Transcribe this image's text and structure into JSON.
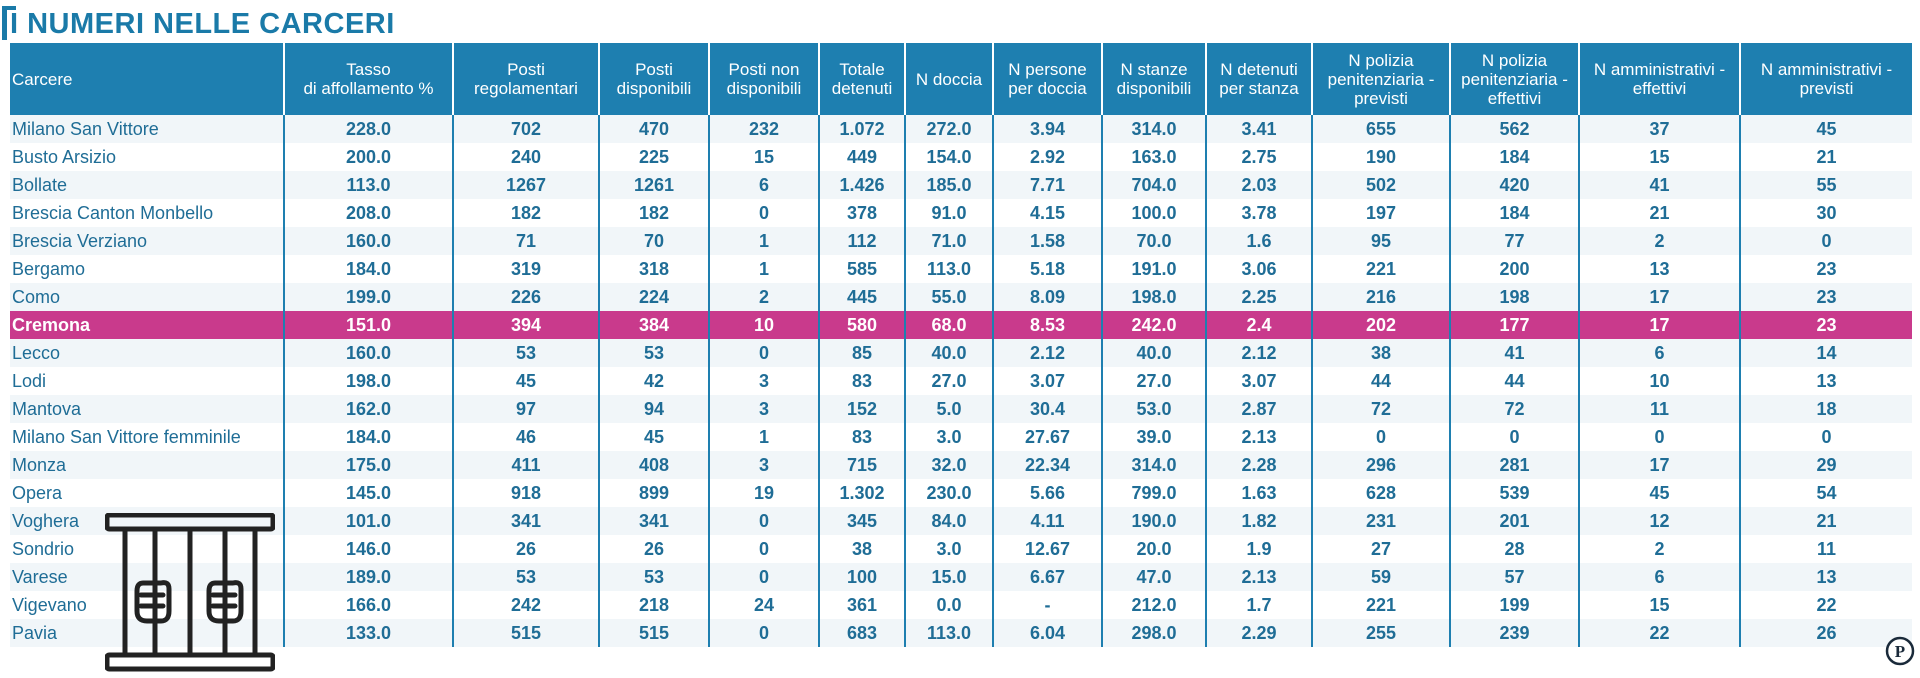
{
  "title": "I NUMERI NELLE CARCERI",
  "headers": [
    "Carcere",
    "Tasso di affollamento %",
    "Posti regolamentari",
    "Posti disponibili",
    "Posti non disponibili",
    "Totale detenuti",
    "N doccia",
    "N persone per doccia",
    "N stanze disponibili",
    "N detenuti per stanza",
    "N polizia penitenziaria - previsti",
    "N polizia penitenziaria - effettivi",
    "N amministrativi - effettivi",
    "N amministrativi - previsti"
  ],
  "rows": [
    [
      "Milano San Vittore",
      "228.0",
      "702",
      "470",
      "232",
      "1.072",
      "272.0",
      "3.94",
      "314.0",
      "3.41",
      "655",
      "562",
      "37",
      "45"
    ],
    [
      "Busto Arsizio",
      "200.0",
      "240",
      "225",
      "15",
      "449",
      "154.0",
      "2.92",
      "163.0",
      "2.75",
      "190",
      "184",
      "15",
      "21"
    ],
    [
      "Bollate",
      "113.0",
      "1267",
      "1261",
      "6",
      "1.426",
      "185.0",
      "7.71",
      "704.0",
      "2.03",
      "502",
      "420",
      "41",
      "55"
    ],
    [
      "Brescia Canton Monbello",
      "208.0",
      "182",
      "182",
      "0",
      "378",
      "91.0",
      "4.15",
      "100.0",
      "3.78",
      "197",
      "184",
      "21",
      "30"
    ],
    [
      "Brescia Verziano",
      "160.0",
      "71",
      "70",
      "1",
      "112",
      "71.0",
      "1.58",
      "70.0",
      "1.6",
      "95",
      "77",
      "2",
      "0"
    ],
    [
      "Bergamo",
      "184.0",
      "319",
      "318",
      "1",
      "585",
      "113.0",
      "5.18",
      "191.0",
      "3.06",
      "221",
      "200",
      "13",
      "23"
    ],
    [
      "Como",
      "199.0",
      "226",
      "224",
      "2",
      "445",
      "55.0",
      "8.09",
      "198.0",
      "2.25",
      "216",
      "198",
      "17",
      "23"
    ],
    [
      "Cremona",
      "151.0",
      "394",
      "384",
      "10",
      "580",
      "68.0",
      "8.53",
      "242.0",
      "2.4",
      "202",
      "177",
      "17",
      "23"
    ],
    [
      "Lecco",
      "160.0",
      "53",
      "53",
      "0",
      "85",
      "40.0",
      "2.12",
      "40.0",
      "2.12",
      "38",
      "41",
      "6",
      "14"
    ],
    [
      "Lodi",
      "198.0",
      "45",
      "42",
      "3",
      "83",
      "27.0",
      "3.07",
      "27.0",
      "3.07",
      "44",
      "44",
      "10",
      "13"
    ],
    [
      "Mantova",
      "162.0",
      "97",
      "94",
      "3",
      "152",
      "5.0",
      "30.4",
      "53.0",
      "2.87",
      "72",
      "72",
      "11",
      "18"
    ],
    [
      "Milano San Vittore femminile",
      "184.0",
      "46",
      "45",
      "1",
      "83",
      "3.0",
      "27.67",
      "39.0",
      "2.13",
      "0",
      "0",
      "0",
      "0"
    ],
    [
      "Monza",
      "175.0",
      "411",
      "408",
      "3",
      "715",
      "32.0",
      "22.34",
      "314.0",
      "2.28",
      "296",
      "281",
      "17",
      "29"
    ],
    [
      "Opera",
      "145.0",
      "918",
      "899",
      "19",
      "1.302",
      "230.0",
      "5.66",
      "799.0",
      "1.63",
      "628",
      "539",
      "45",
      "54"
    ],
    [
      "Voghera",
      "101.0",
      "341",
      "341",
      "0",
      "345",
      "84.0",
      "4.11",
      "190.0",
      "1.82",
      "231",
      "201",
      "12",
      "21"
    ],
    [
      "Sondrio",
      "146.0",
      "26",
      "26",
      "0",
      "38",
      "3.0",
      "12.67",
      "20.0",
      "1.9",
      "27",
      "28",
      "2",
      "11"
    ],
    [
      "Varese",
      "189.0",
      "53",
      "53",
      "0",
      "100",
      "15.0",
      "6.67",
      "47.0",
      "2.13",
      "59",
      "57",
      "6",
      "13"
    ],
    [
      "Vigevano",
      "166.0",
      "242",
      "218",
      "24",
      "361",
      "0.0",
      "-",
      "212.0",
      "1.7",
      "221",
      "199",
      "15",
      "22"
    ],
    [
      "Pavia",
      "133.0",
      "515",
      "515",
      "0",
      "683",
      "113.0",
      "6.04",
      "298.0",
      "2.29",
      "255",
      "239",
      "22",
      "26"
    ]
  ],
  "highlight_row": "Cremona",
  "colors": {
    "accent": "#1e7fb0",
    "highlight": "#c93a8c",
    "text": "#1f6d96"
  },
  "icons": {
    "illustration": "prison-bars-icon",
    "logo": "publisher-logo-icon"
  },
  "logo_text": "P"
}
